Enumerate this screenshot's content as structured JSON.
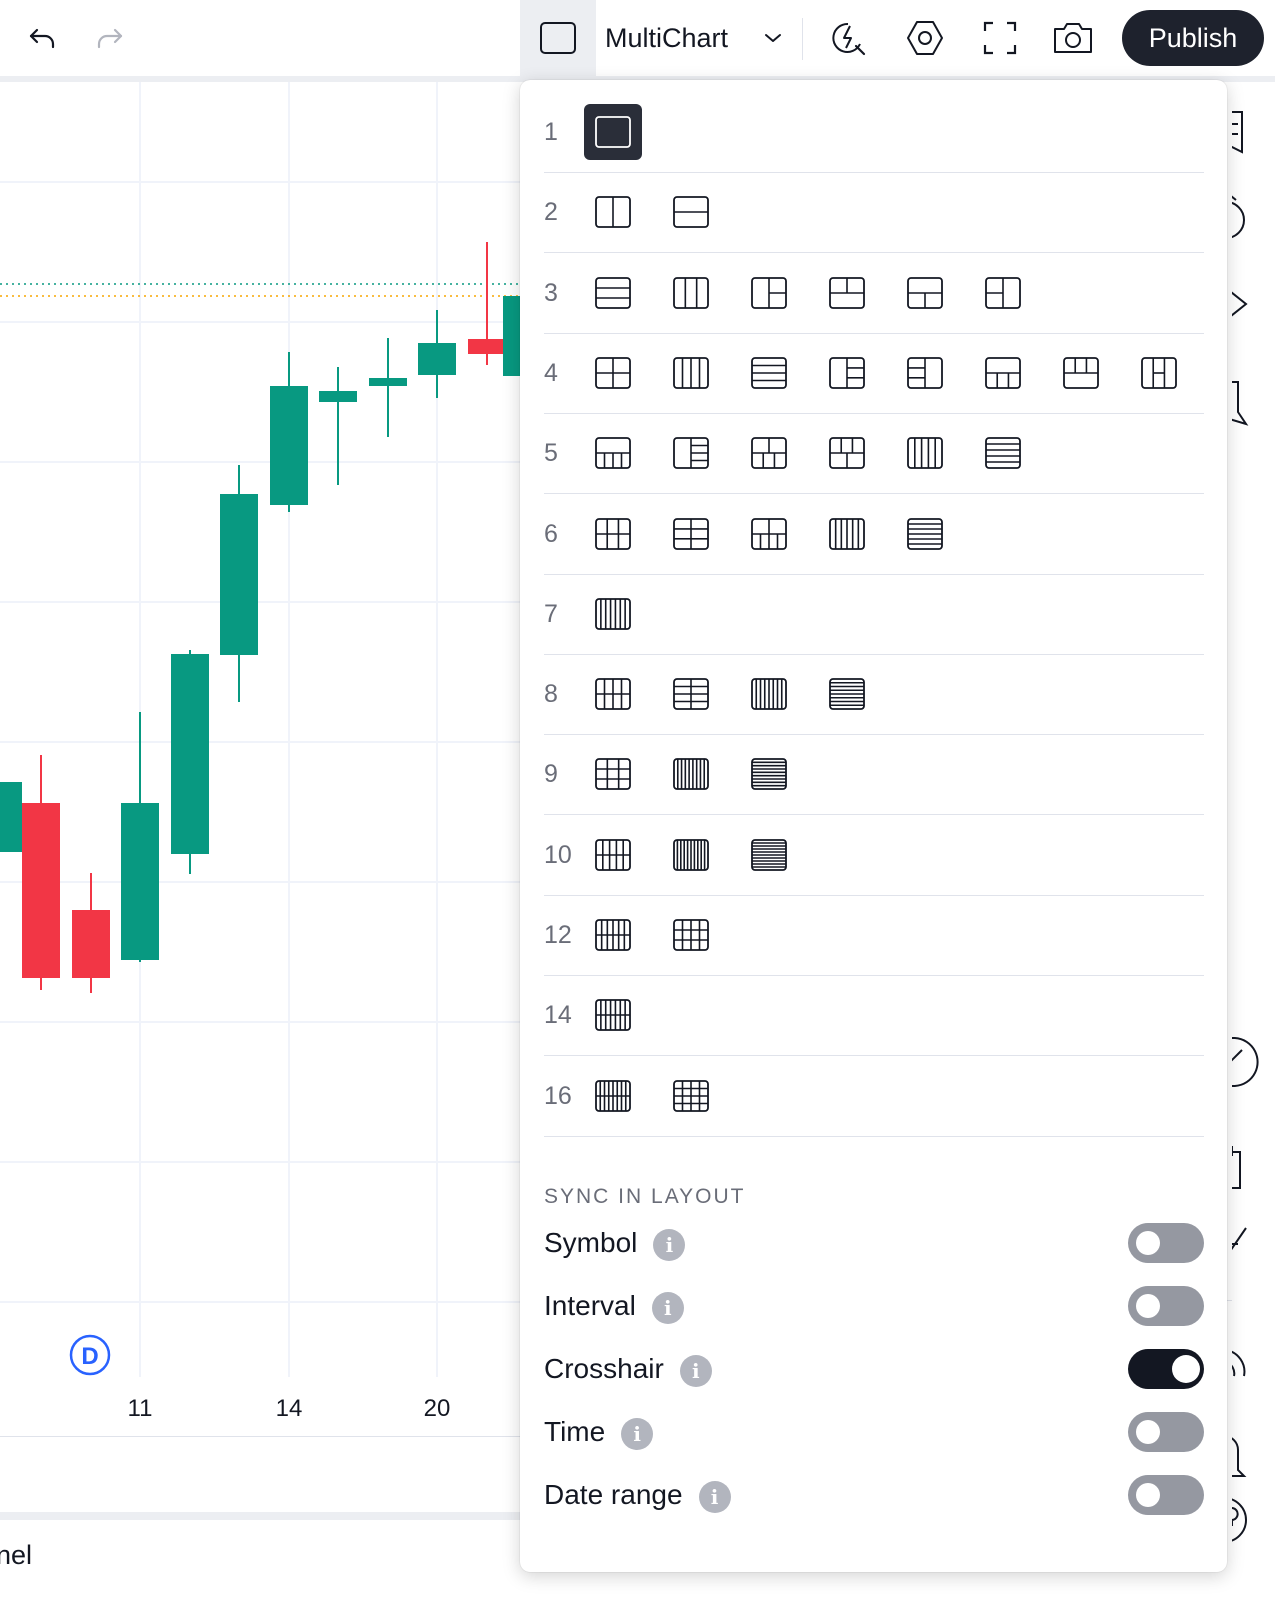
{
  "toolbar": {
    "undo_icon": "undo-icon",
    "redo_icon": "redo-icon",
    "layout_label": "MultiChart",
    "publish_label": "Publish",
    "icons": [
      "single-layout-icon",
      "chevron-down-icon",
      "alert-search-icon",
      "settings-hexagon-icon",
      "fullscreen-icon",
      "camera-icon"
    ]
  },
  "chart": {
    "x_ticks": [
      "11",
      "14",
      "20"
    ],
    "dividend_badge": "D",
    "colors": {
      "up": "#089981",
      "down": "#f23645",
      "grid": "#f0f3fa"
    }
  },
  "bottom_panel": {
    "label": "nel"
  },
  "layout_menu": {
    "rows": [
      {
        "count": "1",
        "layouts": [
          "1"
        ]
      },
      {
        "count": "2",
        "layouts": [
          "2v",
          "2h"
        ]
      },
      {
        "count": "3",
        "layouts": [
          "3h",
          "3v",
          "3a",
          "3b",
          "3c",
          "3d"
        ]
      },
      {
        "count": "4",
        "layouts": [
          "4g",
          "4v",
          "4h",
          "4a",
          "4b",
          "4c",
          "4d",
          "4e"
        ]
      },
      {
        "count": "5",
        "layouts": [
          "5a",
          "5b",
          "5c",
          "5d",
          "5v",
          "5h"
        ]
      },
      {
        "count": "6",
        "layouts": [
          "6a",
          "6b",
          "6c",
          "6v",
          "6h"
        ]
      },
      {
        "count": "7",
        "layouts": [
          "7v"
        ]
      },
      {
        "count": "8",
        "layouts": [
          "8a",
          "8b",
          "8v",
          "8h"
        ]
      },
      {
        "count": "9",
        "layouts": [
          "9g",
          "9v",
          "9h"
        ]
      },
      {
        "count": "10",
        "layouts": [
          "10g",
          "10v",
          "10h"
        ]
      },
      {
        "count": "12",
        "layouts": [
          "12a",
          "12b"
        ]
      },
      {
        "count": "14",
        "layouts": [
          "14a"
        ]
      },
      {
        "count": "16",
        "layouts": [
          "16a",
          "16b"
        ]
      }
    ],
    "selected": "1",
    "sync_title": "SYNC IN LAYOUT",
    "sync": [
      {
        "label": "Symbol",
        "on": false
      },
      {
        "label": "Interval",
        "on": false
      },
      {
        "label": "Crosshair",
        "on": true
      },
      {
        "label": "Time",
        "on": false
      },
      {
        "label": "Date range",
        "on": false
      }
    ],
    "info_glyph": "i"
  }
}
